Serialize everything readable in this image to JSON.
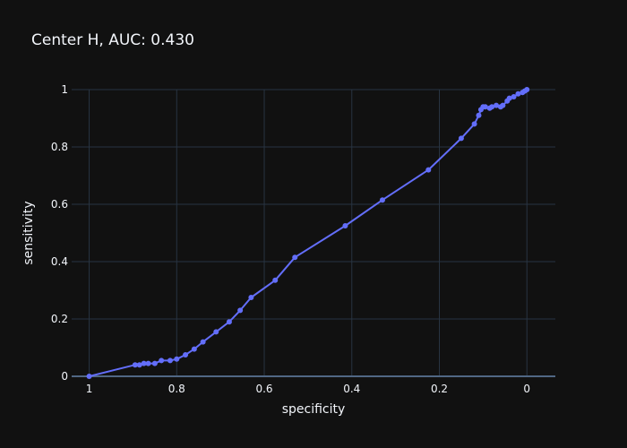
{
  "chart_data": {
    "type": "line",
    "title": "Center H, AUC: 0.430",
    "xlabel": "specificity",
    "ylabel": "sensitivity",
    "xlim": [
      1.04,
      -0.065
    ],
    "ylim": [
      0,
      1
    ],
    "x_reversed": true,
    "grid": true,
    "legend": "none",
    "x_ticks": [
      1,
      0.8,
      0.6,
      0.4,
      0.2,
      0
    ],
    "x_tick_labels": [
      "1",
      "0.8",
      "0.6",
      "0.4",
      "0.2",
      "0"
    ],
    "y_ticks": [
      0,
      0.2,
      0.4,
      0.6,
      0.8,
      1
    ],
    "y_tick_labels": [
      "0",
      "0.2",
      "0.4",
      "0.6",
      "0.8",
      "1"
    ],
    "series": [
      {
        "color": "#636efa",
        "marker": "circle",
        "points": [
          [
            1.0,
            0.0
          ],
          [
            0.895,
            0.04
          ],
          [
            0.885,
            0.04
          ],
          [
            0.875,
            0.045
          ],
          [
            0.865,
            0.045
          ],
          [
            0.85,
            0.045
          ],
          [
            0.835,
            0.055
          ],
          [
            0.815,
            0.055
          ],
          [
            0.8,
            0.06
          ],
          [
            0.78,
            0.075
          ],
          [
            0.76,
            0.095
          ],
          [
            0.74,
            0.12
          ],
          [
            0.71,
            0.155
          ],
          [
            0.68,
            0.19
          ],
          [
            0.655,
            0.23
          ],
          [
            0.63,
            0.275
          ],
          [
            0.575,
            0.335
          ],
          [
            0.53,
            0.415
          ],
          [
            0.415,
            0.525
          ],
          [
            0.33,
            0.615
          ],
          [
            0.225,
            0.72
          ],
          [
            0.15,
            0.83
          ],
          [
            0.12,
            0.88
          ],
          [
            0.11,
            0.91
          ],
          [
            0.105,
            0.93
          ],
          [
            0.1,
            0.94
          ],
          [
            0.095,
            0.94
          ],
          [
            0.085,
            0.935
          ],
          [
            0.08,
            0.94
          ],
          [
            0.07,
            0.945
          ],
          [
            0.06,
            0.94
          ],
          [
            0.055,
            0.945
          ],
          [
            0.045,
            0.96
          ],
          [
            0.04,
            0.97
          ],
          [
            0.03,
            0.975
          ],
          [
            0.02,
            0.985
          ],
          [
            0.01,
            0.99
          ],
          [
            0.005,
            0.995
          ],
          [
            0.0,
            1.0
          ]
        ]
      }
    ]
  }
}
